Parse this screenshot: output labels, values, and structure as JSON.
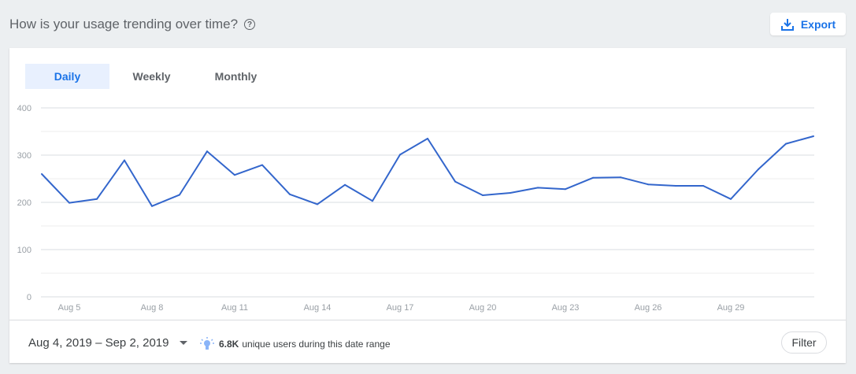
{
  "header": {
    "title": "How is your usage trending over time?",
    "help_icon": "help-circle-icon",
    "export_label": "Export",
    "export_icon": "download-icon"
  },
  "tabs": [
    {
      "label": "Daily",
      "active": true
    },
    {
      "label": "Weekly",
      "active": false
    },
    {
      "label": "Monthly",
      "active": false
    }
  ],
  "footer": {
    "date_range": "Aug 4, 2019 – Sep 2, 2019",
    "users_count": "6.8K",
    "users_text": "unique users during this date range",
    "insight_icon": "lightbulb-icon",
    "filter_label": "Filter"
  },
  "colors": {
    "line": "#3366cc",
    "accent": "#1a73e8"
  },
  "chart_data": {
    "type": "line",
    "x": [
      "Aug 4",
      "Aug 5",
      "Aug 6",
      "Aug 7",
      "Aug 8",
      "Aug 9",
      "Aug 10",
      "Aug 11",
      "Aug 12",
      "Aug 13",
      "Aug 14",
      "Aug 15",
      "Aug 16",
      "Aug 17",
      "Aug 18",
      "Aug 19",
      "Aug 20",
      "Aug 21",
      "Aug 22",
      "Aug 23",
      "Aug 24",
      "Aug 25",
      "Aug 26",
      "Aug 27",
      "Aug 28",
      "Aug 29",
      "Aug 30",
      "Aug 31",
      "Sep 1"
    ],
    "values": [
      260,
      199,
      207,
      289,
      192,
      216,
      308,
      258,
      279,
      217,
      196,
      237,
      203,
      301,
      335,
      244,
      215,
      220,
      231,
      228,
      252,
      253,
      238,
      235,
      235,
      207,
      270,
      324,
      340
    ],
    "xticks": [
      "Aug 5",
      "Aug 8",
      "Aug 11",
      "Aug 14",
      "Aug 17",
      "Aug 20",
      "Aug 23",
      "Aug 26",
      "Aug 29"
    ],
    "yticks": [
      "0",
      "100",
      "200",
      "300",
      "400"
    ],
    "ylim": [
      0,
      400
    ],
    "grid": true
  }
}
